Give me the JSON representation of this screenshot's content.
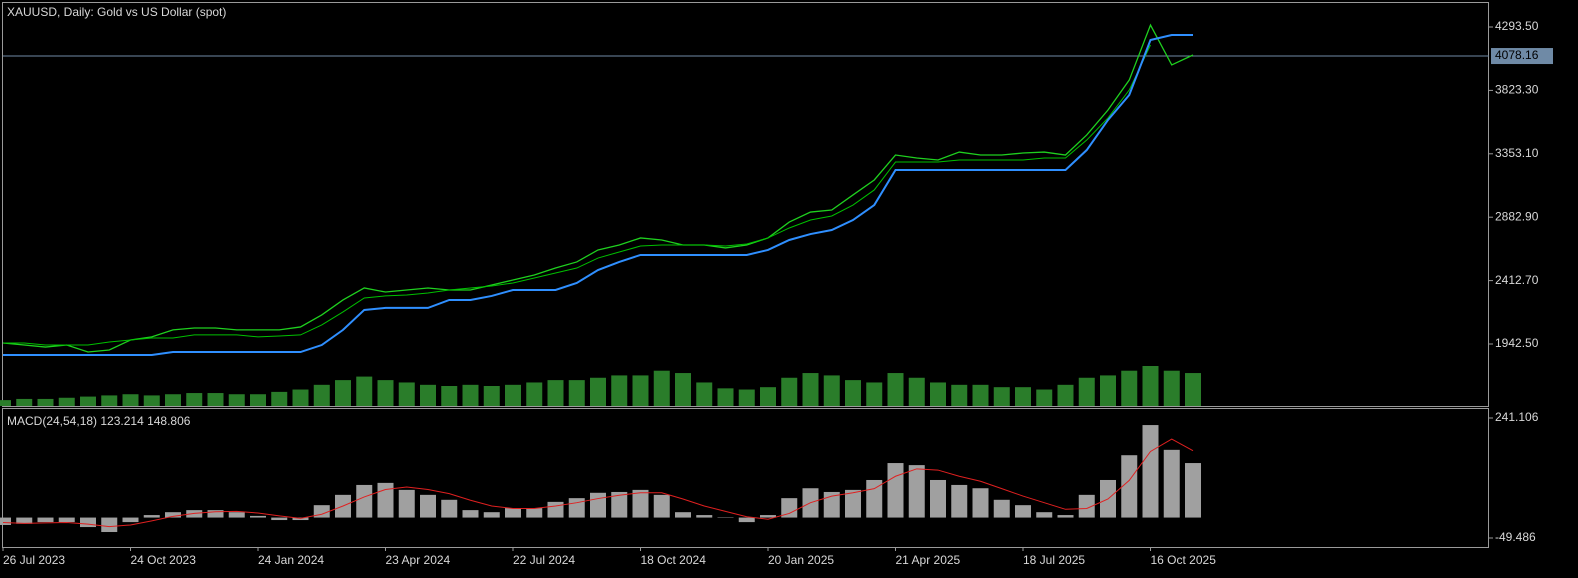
{
  "chart_data": [
    {
      "type": "line",
      "title": "XAUUSD, Daily:  Gold vs US Dollar (spot)",
      "ylim": [
        1482.7,
        4471.5
      ],
      "yticks": [
        {
          "value": 4293.5,
          "label": "4293.50"
        },
        {
          "value": 3823.3,
          "label": "3823.30"
        },
        {
          "value": 3353.1,
          "label": "3353.10"
        },
        {
          "value": 2882.9,
          "label": "2882.90"
        },
        {
          "value": 2412.7,
          "label": "2412.70"
        },
        {
          "value": 1942.5,
          "label": "1942.50"
        }
      ],
      "current_price": 4078.16,
      "series": [
        {
          "color": "#1fd01f",
          "values": [
            1950,
            1935,
            1920,
            1935,
            1883,
            1898,
            1972,
            1995,
            2047,
            2061,
            2061,
            2047,
            2047,
            2047,
            2069,
            2158,
            2269,
            2358,
            2328,
            2343,
            2358,
            2343,
            2343,
            2380,
            2417,
            2454,
            2506,
            2551,
            2640,
            2677,
            2729,
            2714,
            2677,
            2677,
            2655,
            2677,
            2729,
            2847,
            2921,
            2936,
            3048,
            3159,
            3344,
            3322,
            3307,
            3366,
            3344,
            3344,
            3359,
            3366,
            3344,
            3493,
            3678,
            3900,
            4308,
            4012,
            4086
          ]
        },
        {
          "color": "#00c000",
          "values": [
            1950,
            1950,
            1935,
            1935,
            1935,
            1957,
            1972,
            1987,
            1987,
            2010,
            2010,
            2010,
            1995,
            2002,
            2010,
            2084,
            2180,
            2284,
            2299,
            2306,
            2321,
            2343,
            2358,
            2373,
            2395,
            2432,
            2469,
            2506,
            2580,
            2625,
            2669,
            2677,
            2677,
            2677,
            2669,
            2684,
            2729,
            2803,
            2862,
            2892,
            2973,
            3085,
            3292,
            3292,
            3292,
            3307,
            3307,
            3307,
            3307,
            3322,
            3322,
            3455,
            3619,
            3826,
            4160,
            null,
            null
          ]
        },
        {
          "color": "#2f8fff",
          "values": [
            1861,
            1861,
            1861,
            1861,
            1861,
            1861,
            1861,
            1861,
            1883,
            1883,
            1883,
            1883,
            1883,
            1883,
            1883,
            1935,
            2047,
            2195,
            2210,
            2210,
            2210,
            2269,
            2269,
            2299,
            2343,
            2343,
            2343,
            2395,
            2491,
            2551,
            2603,
            2603,
            2603,
            2603,
            2603,
            2603,
            2640,
            2714,
            2758,
            2788,
            2862,
            2973,
            3233,
            3233,
            3233,
            3233,
            3233,
            3233,
            3233,
            3233,
            3233,
            3381,
            3604,
            3789,
            4197,
            4234,
            4234
          ]
        }
      ],
      "volume": {
        "color": "#2a7d2a",
        "values": [
          5,
          6,
          6,
          7,
          8,
          9,
          10,
          9,
          10,
          11,
          11,
          10,
          10,
          12,
          14,
          18,
          22,
          25,
          22,
          20,
          18,
          17,
          18,
          17,
          18,
          20,
          22,
          22,
          24,
          26,
          26,
          30,
          28,
          20,
          15,
          14,
          16,
          24,
          28,
          26,
          22,
          20,
          28,
          24,
          20,
          18,
          18,
          16,
          16,
          14,
          18,
          24,
          26,
          30,
          34,
          30,
          28
        ]
      }
    },
    {
      "type": "macd",
      "title": "MACD(24,54,18) 123.214 148.806",
      "ylim": [
        -71.3,
        262.9
      ],
      "yticks": [
        241.106,
        -49.486
      ],
      "categories": [
        "26 Jul 2023",
        null,
        null,
        null,
        null,
        null,
        "24 Oct 2023",
        null,
        null,
        null,
        null,
        null,
        "24 Jan 2024",
        null,
        null,
        null,
        null,
        null,
        "23 Apr 2024",
        null,
        null,
        null,
        null,
        null,
        "22 Jul 2024",
        null,
        null,
        null,
        null,
        null,
        "18 Oct 2024",
        null,
        null,
        null,
        null,
        null,
        "20 Jan 2025",
        null,
        null,
        null,
        null,
        null,
        "21 Apr 2025",
        null,
        null,
        null,
        null,
        null,
        "18 Jul 2025",
        null,
        null,
        null,
        null,
        null,
        "16 Oct 2025",
        null,
        null
      ],
      "series": [
        {
          "color": "#a0a0a0",
          "values": [
            -18,
            -15,
            -11,
            -11,
            -23,
            -35,
            -11,
            6,
            13,
            18,
            18,
            13,
            4,
            -6,
            -6,
            30,
            55,
            79,
            84,
            67,
            55,
            43,
            18,
            13,
            23,
            23,
            38,
            47,
            60,
            62,
            67,
            55,
            13,
            6,
            -1,
            -11,
            6,
            47,
            71,
            62,
            67,
            91,
            132,
            127,
            91,
            79,
            71,
            43,
            30,
            13,
            6,
            55,
            91,
            151,
            224,
            164,
            132
          ]
        },
        {
          "color": "#e02020",
          "values": [
            -12,
            -14,
            -13,
            -12,
            -16,
            -22,
            -18,
            -8,
            3,
            10,
            14,
            15,
            11,
            4,
            -2,
            8,
            28,
            50,
            68,
            74,
            68,
            58,
            42,
            28,
            22,
            22,
            28,
            36,
            46,
            54,
            60,
            60,
            45,
            28,
            15,
            2,
            -4,
            10,
            36,
            52,
            60,
            70,
            100,
            118,
            115,
            100,
            88,
            70,
            52,
            36,
            20,
            22,
            45,
            90,
            160,
            190,
            162
          ]
        }
      ]
    }
  ]
}
